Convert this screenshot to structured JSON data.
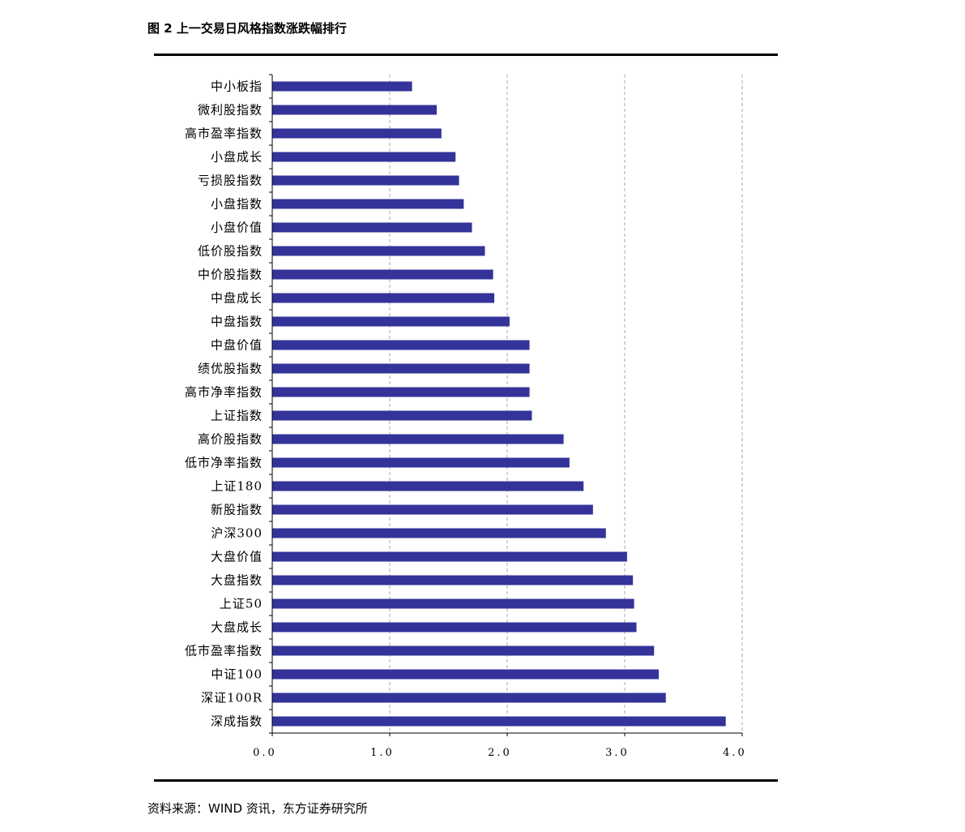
{
  "figure": {
    "title": "图 2  上一交易日风格指数涨跌幅排行",
    "source": "资料来源：WIND 资讯，东方证券研究所"
  },
  "chart_data": {
    "type": "bar",
    "orientation": "horizontal",
    "categories": [
      "中小板指",
      "微利股指数",
      "高市盈率指数",
      "小盘成长",
      "亏损股指数",
      "小盘指数",
      "小盘价值",
      "低价股指数",
      "中价股指数",
      "中盘成长",
      "中盘指数",
      "中盘价值",
      "绩优股指数",
      "高市净率指数",
      "上证指数",
      "高价股指数",
      "低市净率指数",
      "上证180",
      "新股指数",
      "沪深300",
      "大盘价值",
      "大盘指数",
      "上证50",
      "大盘成长",
      "低市盈率指数",
      "中证100",
      "深证100R",
      "深成指数"
    ],
    "series": [
      {
        "values": [
          1.19,
          1.4,
          1.44,
          1.56,
          1.59,
          1.63,
          1.7,
          1.81,
          1.88,
          1.89,
          2.02,
          2.19,
          2.19,
          2.19,
          2.21,
          2.48,
          2.53,
          2.65,
          2.73,
          2.84,
          3.02,
          3.07,
          3.08,
          3.1,
          3.25,
          3.29,
          3.35,
          3.86
        ],
        "color": "#33339A"
      }
    ],
    "xlim": [
      0,
      4
    ],
    "xticks": [
      "0.0",
      "1.0",
      "2.0",
      "3.0",
      "4.0"
    ],
    "xlabel": "",
    "ylabel": "",
    "grid": "vertical dashed",
    "legend": "none"
  }
}
